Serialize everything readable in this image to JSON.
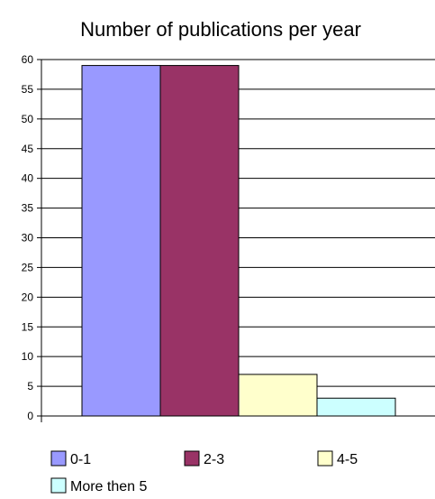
{
  "chart_data": {
    "type": "bar",
    "title": "Number of publications per year",
    "xlabel": "",
    "ylabel": "",
    "ylim": [
      0,
      60
    ],
    "ytick_step": 5,
    "grid": true,
    "legend_position": "bottom",
    "categories": [
      ""
    ],
    "series": [
      {
        "name": "0-1",
        "values": [
          59
        ],
        "color": "#9999ff"
      },
      {
        "name": "2-3",
        "values": [
          59
        ],
        "color": "#993366"
      },
      {
        "name": "4-5",
        "values": [
          7
        ],
        "color": "#ffffcc"
      },
      {
        "name": "More then 5",
        "values": [
          3
        ],
        "color": "#ccffff"
      }
    ]
  }
}
